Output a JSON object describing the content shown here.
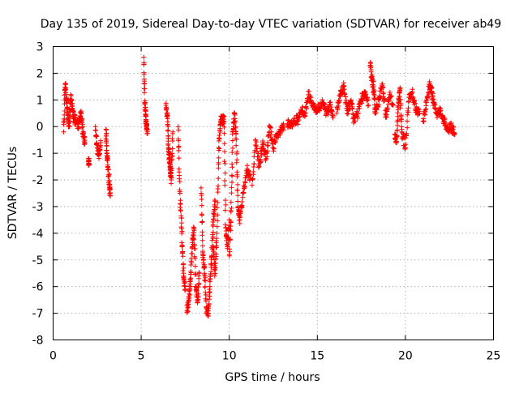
{
  "chart_data": {
    "type": "scatter",
    "title": "Day 135 of 2019, Sidereal Day-to-day VTEC variation (SDTVAR) for receiver ab49",
    "xlabel": "GPS time / hours",
    "ylabel": "SDTVAR / TECUs",
    "xlim": [
      0,
      25
    ],
    "ylim": [
      -8,
      3
    ],
    "xticks": [
      "0",
      "5",
      "10",
      "15",
      "20",
      "25"
    ],
    "yticks": [
      "-8",
      "-7",
      "-6",
      "-5",
      "-4",
      "-3",
      "-2",
      "-1",
      "0",
      "1",
      "2",
      "3"
    ],
    "grid": true,
    "marker": "+",
    "color": "#ff0000",
    "series": [
      {
        "name": "SDTVAR",
        "segments": [
          {
            "x": [
              0.6,
              0.68,
              0.75,
              0.82,
              0.9,
              1.0,
              1.1,
              1.2,
              1.3
            ],
            "y": [
              -0.2,
              1.6,
              1.0,
              0.5,
              0.0,
              1.2,
              0.6,
              0.3,
              0.2
            ]
          },
          {
            "x": [
              1.4,
              1.5,
              1.6,
              1.7,
              1.8
            ],
            "y": [
              0.0,
              0.3,
              0.5,
              -0.3,
              -0.6
            ]
          },
          {
            "x": [
              2.0,
              2.05
            ],
            "y": [
              -1.2,
              -1.4
            ]
          },
          {
            "x": [
              2.4,
              2.5,
              2.6,
              2.7
            ],
            "y": [
              0.0,
              -0.8,
              -1.1,
              -0.6
            ]
          },
          {
            "x": [
              3.0,
              3.05,
              3.1,
              3.2,
              3.25
            ],
            "y": [
              -0.1,
              -0.9,
              -1.5,
              -2.2,
              -2.6
            ]
          },
          {
            "x": [
              5.15,
              5.2,
              5.25,
              5.3,
              5.35
            ],
            "y": [
              2.6,
              0.9,
              0.4,
              0.0,
              -0.2
            ]
          },
          {
            "x": [
              6.4,
              6.5,
              6.55,
              6.6,
              6.65,
              6.7,
              6.8
            ],
            "y": [
              0.8,
              0.3,
              -0.8,
              -1.2,
              -1.6,
              -2.0,
              -0.2
            ]
          },
          {
            "x": [
              7.1,
              7.2,
              7.3,
              7.4,
              7.5
            ],
            "y": [
              0.0,
              -2.5,
              -4.0,
              -5.5,
              -6.1
            ]
          },
          {
            "x": [
              7.6,
              7.7,
              7.8,
              7.9,
              8.0,
              8.1,
              8.2,
              8.3
            ],
            "y": [
              -6.9,
              -6.5,
              -5.8,
              -4.5,
              -3.8,
              -6.0,
              -6.6,
              -5.5
            ]
          },
          {
            "x": [
              8.4,
              8.5,
              8.6,
              8.7,
              8.8,
              8.9,
              9.0,
              9.1,
              9.2
            ],
            "y": [
              -2.3,
              -4.8,
              -5.5,
              -6.8,
              -7.0,
              -6.0,
              -4.9,
              -3.5,
              -2.8
            ]
          },
          {
            "x": [
              9.1,
              9.2,
              9.3,
              9.4,
              9.5,
              9.6,
              9.7,
              9.8,
              9.9,
              10.0
            ],
            "y": [
              -4.5,
              -5.5,
              -4.0,
              -0.8,
              0.2,
              0.3,
              0.2,
              -3.8,
              -4.5,
              -3.5
            ]
          },
          {
            "x": [
              10.0,
              10.1,
              10.2,
              10.3,
              10.4,
              10.5,
              10.6,
              10.8,
              11.0,
              11.2
            ],
            "y": [
              -4.8,
              -3.2,
              -0.2,
              0.5,
              -0.5,
              -3.0,
              -3.5,
              -2.5,
              -1.6,
              -1.9
            ]
          },
          {
            "x": [
              11.3,
              11.5,
              11.7,
              11.9,
              12.1,
              12.3,
              12.5,
              12.7,
              12.9,
              13.1
            ],
            "y": [
              -2.2,
              -0.5,
              -1.5,
              -0.6,
              -1.2,
              0.0,
              -0.8,
              -0.4,
              -0.2,
              0.0
            ]
          },
          {
            "x": [
              13.3,
              13.5,
              13.7,
              13.9,
              14.1,
              14.3,
              14.5,
              14.7,
              14.9,
              15.1,
              15.3,
              15.5,
              15.7,
              15.9
            ],
            "y": [
              0.1,
              0.0,
              0.3,
              0.2,
              0.6,
              0.5,
              1.2,
              0.9,
              0.6,
              0.7,
              0.9,
              0.5,
              0.8,
              0.4
            ]
          },
          {
            "x": [
              16.1,
              16.3,
              16.5,
              16.7,
              16.9,
              17.1,
              17.3,
              17.5,
              17.7,
              17.9
            ],
            "y": [
              0.5,
              1.2,
              1.5,
              0.6,
              0.9,
              0.2,
              0.5,
              1.0,
              1.3,
              0.8
            ]
          },
          {
            "x": [
              18.0,
              18.1,
              18.2,
              18.3,
              18.5,
              18.7,
              18.9,
              19.1,
              19.3
            ],
            "y": [
              2.3,
              1.8,
              1.4,
              0.5,
              1.0,
              1.6,
              0.4,
              1.2,
              0.8
            ]
          },
          {
            "x": [
              19.4,
              19.5,
              19.6,
              19.7,
              19.8,
              20.0,
              20.2,
              20.4,
              20.6,
              20.8
            ],
            "y": [
              -0.3,
              -0.6,
              0.9,
              1.4,
              -0.2,
              -0.8,
              1.1,
              1.3,
              0.6,
              0.5
            ]
          },
          {
            "x": [
              21.0,
              21.2,
              21.4,
              21.5,
              21.6,
              21.8,
              22.0,
              22.2,
              22.4,
              22.6,
              22.8
            ],
            "y": [
              0.2,
              1.0,
              1.6,
              1.3,
              0.9,
              0.5,
              0.6,
              0.2,
              -0.1,
              0.0,
              -0.3
            ]
          }
        ]
      }
    ]
  }
}
